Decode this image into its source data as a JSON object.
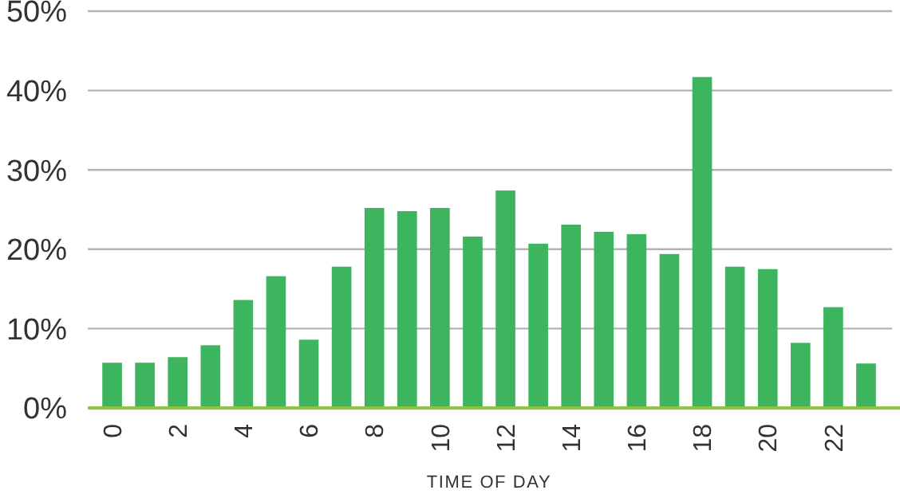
{
  "chart_data": {
    "type": "bar",
    "xlabel": "TIME OF DAY",
    "categories": [
      "0",
      null,
      "2",
      null,
      "4",
      null,
      "6",
      null,
      "8",
      null,
      "10",
      null,
      "12",
      null,
      "14",
      null,
      "16",
      null,
      "18",
      null,
      "20",
      null,
      "22",
      null
    ],
    "values": [
      5.7,
      5.7,
      6.4,
      7.9,
      13.6,
      16.6,
      8.6,
      17.8,
      25.2,
      24.8,
      25.2,
      21.6,
      27.4,
      20.7,
      23.1,
      22.2,
      21.9,
      19.4,
      41.7,
      17.8,
      17.5,
      8.2,
      12.7,
      5.6
    ],
    "color": "#3cb55e",
    "ylim": [
      0,
      50
    ],
    "yticks": [
      {
        "value": 0,
        "label": "0%"
      },
      {
        "value": 10,
        "label": "10%"
      },
      {
        "value": 20,
        "label": "20%"
      },
      {
        "value": 30,
        "label": "30%"
      },
      {
        "value": 40,
        "label": "40%"
      },
      {
        "value": 50,
        "label": "50%"
      }
    ],
    "grid": "y"
  }
}
